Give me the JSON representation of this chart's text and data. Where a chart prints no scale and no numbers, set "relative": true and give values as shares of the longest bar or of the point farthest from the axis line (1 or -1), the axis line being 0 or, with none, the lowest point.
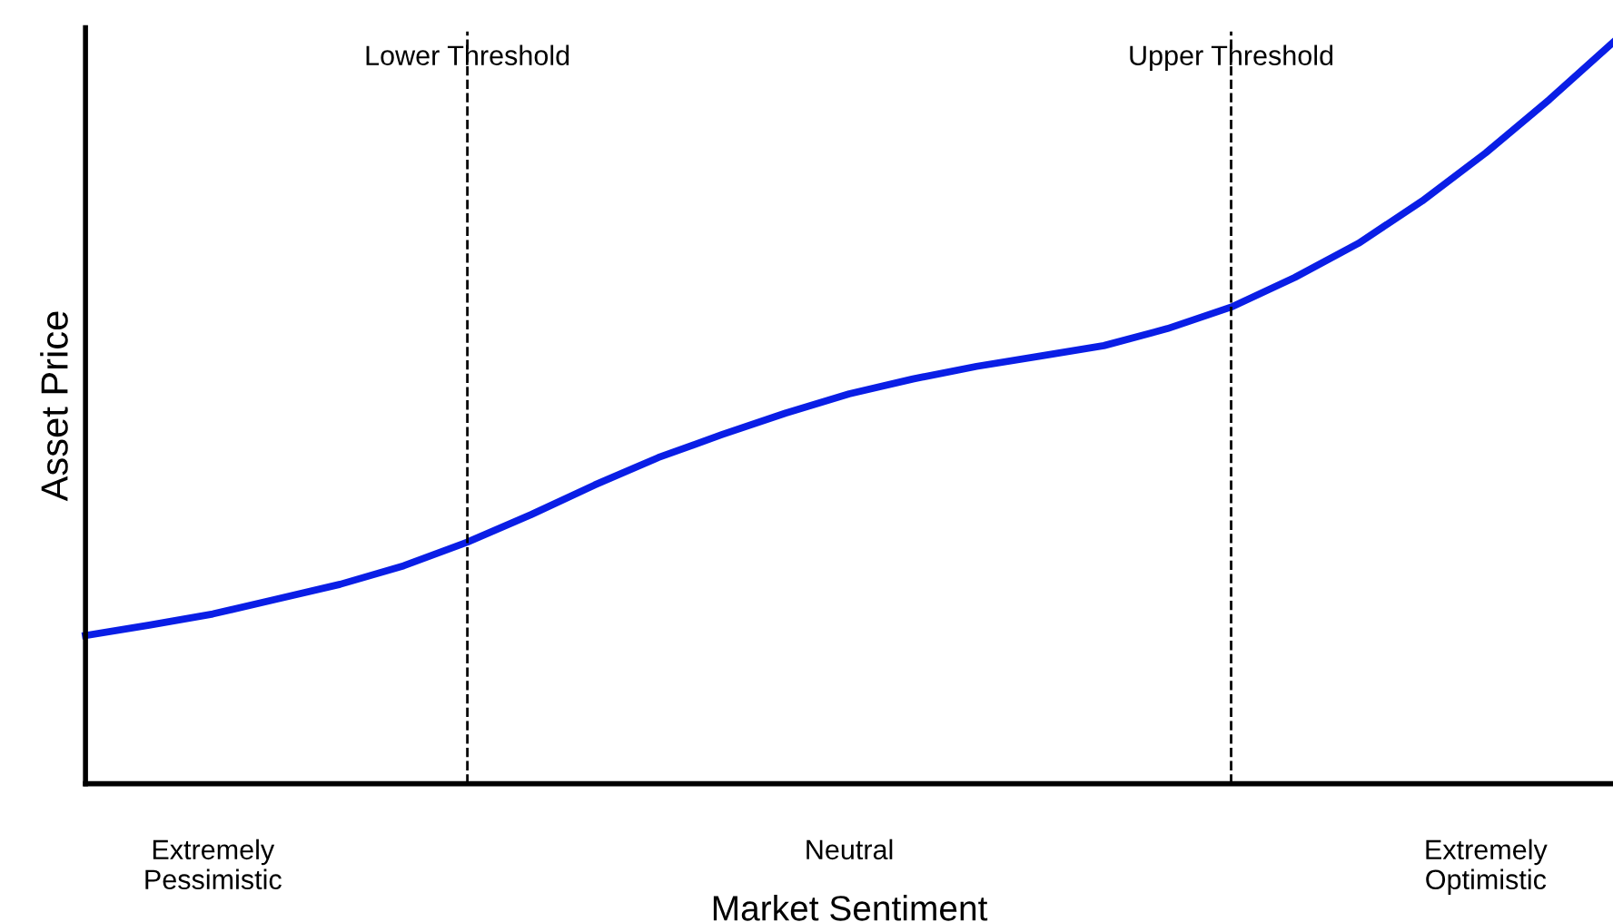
{
  "chart_data": {
    "type": "line",
    "xlabel": "Market Sentiment",
    "ylabel": "Asset Price",
    "relative": true,
    "categories": [
      null,
      null,
      "Extremely\nPessimistic",
      null,
      null,
      null,
      null,
      null,
      null,
      null,
      null,
      null,
      "Neutral",
      null,
      null,
      null,
      null,
      null,
      null,
      null,
      null,
      null,
      "Extremely\nOptimistic",
      null,
      null
    ],
    "series": [
      {
        "color": "#0a1ee6",
        "values": [
          0.2,
          0.214,
          0.229,
          0.249,
          0.269,
          0.294,
          0.326,
          0.363,
          0.403,
          0.44,
          0.471,
          0.5,
          0.526,
          0.546,
          0.563,
          0.577,
          0.591,
          0.614,
          0.643,
          0.683,
          0.729,
          0.786,
          0.851,
          0.923,
          1.0
        ]
      }
    ],
    "annotations": [
      "Lower Threshold",
      "Upper Threshold"
    ],
    "marker": "none",
    "line_style": "solid"
  }
}
